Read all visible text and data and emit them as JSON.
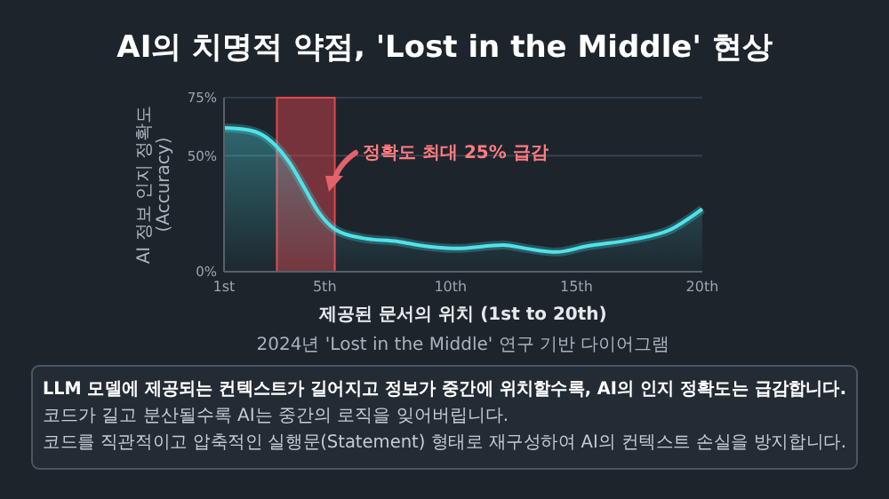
{
  "chart_data": {
    "type": "area",
    "title": "AI의 치명적 약점, 'Lost in the Middle' 현상",
    "xlabel": "제공된 문서의 위치 (1st to 20th)",
    "ylabel": "AI 정보 인지 정확도 (Accuracy)",
    "x": [
      1,
      2,
      2.9,
      3.6,
      4.2,
      4.8,
      5.45,
      6.5,
      7.9,
      9,
      10.2,
      12.1,
      13,
      14.2,
      15.4,
      17.3,
      18.7,
      20
    ],
    "series": [
      {
        "color": "#4fe3ea",
        "values": [
          62,
          61,
          56,
          47,
          36,
          25,
          18,
          14.5,
          13,
          11,
          10,
          11.5,
          10,
          8.5,
          11,
          14,
          18,
          27
        ]
      }
    ],
    "xlim": [
      1,
      20
    ],
    "xticks": [
      {
        "value": 1,
        "label": "1st"
      },
      {
        "value": 5,
        "label": "5th"
      },
      {
        "value": 10,
        "label": "10th"
      },
      {
        "value": 15,
        "label": "15th"
      },
      {
        "value": 20,
        "label": "20th"
      }
    ],
    "ylim": [
      0,
      75
    ],
    "yticks": [
      {
        "value": 0,
        "label": "0%"
      },
      {
        "value": 50,
        "label": "50%"
      },
      {
        "value": 75,
        "label": "75%"
      }
    ],
    "grid": "y",
    "bands": [
      {
        "axis": "x",
        "from": 3.1,
        "to": 5.4,
        "color": "#e5484d"
      }
    ],
    "annotations": [
      "정확도 최대 25% 급감",
      "2024년 'Lost in the Middle' 연구 기반 다이어그램",
      "LLM 모델에 제공되는 컨텍스트가 길어지고 정보가 중간에 위치할수록, AI의 인지 정확도는 급감합니다.",
      "코드가 길고 분산될수록 AI는 중간의 로직을 잊어버립니다.",
      "코드를 직관적이고 압축적인 실행문(Statement) 형태로 재구성하여 AI의 컨텍스트 손실을 방지합니다."
    ]
  }
}
